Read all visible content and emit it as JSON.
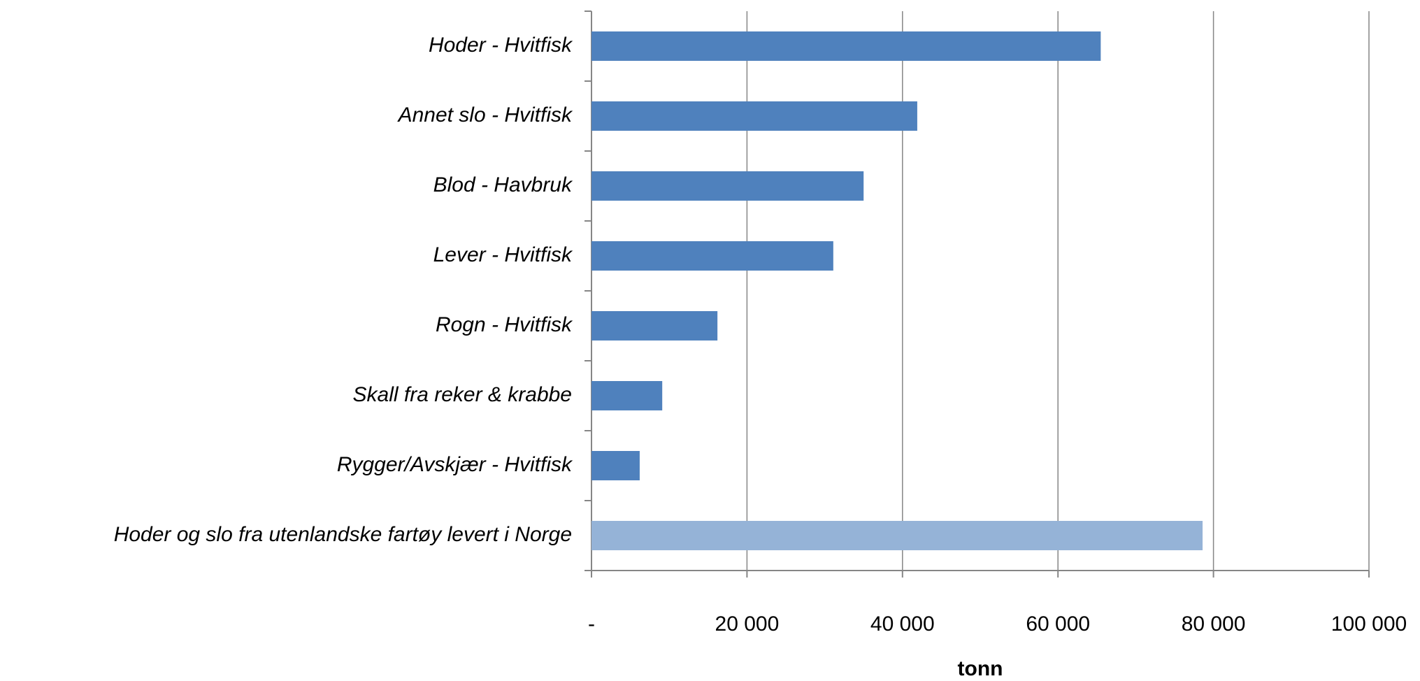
{
  "chart_data": {
    "type": "hbar",
    "categories": [
      "Hoder - Hvitfisk",
      "Annet slo - Hvitfisk",
      "Blod - Havbruk",
      "Lever - Hvitfisk",
      "Rogn - Hvitfisk",
      "Skall fra reker & krabbe",
      "Rygger/Avskjær - Hvitfisk",
      "Hoder og slo fra utenlandske fartøy levert i Norge"
    ],
    "values": [
      65500,
      41900,
      35000,
      31100,
      16200,
      9100,
      6200,
      78600
    ],
    "colors": [
      "#4f81bd",
      "#4f81bd",
      "#4f81bd",
      "#4f81bd",
      "#4f81bd",
      "#4f81bd",
      "#4f81bd",
      "#95b3d7"
    ],
    "xlabel": "tonn",
    "xlim": [
      0,
      100000
    ],
    "xticks": [
      {
        "value": 0,
        "label": "-"
      },
      {
        "value": 20000,
        "label": "20 000"
      },
      {
        "value": 40000,
        "label": "40 000"
      },
      {
        "value": 60000,
        "label": "60 000"
      },
      {
        "value": 80000,
        "label": "80 000"
      },
      {
        "value": 100000,
        "label": "100 000"
      }
    ],
    "grid": true
  }
}
